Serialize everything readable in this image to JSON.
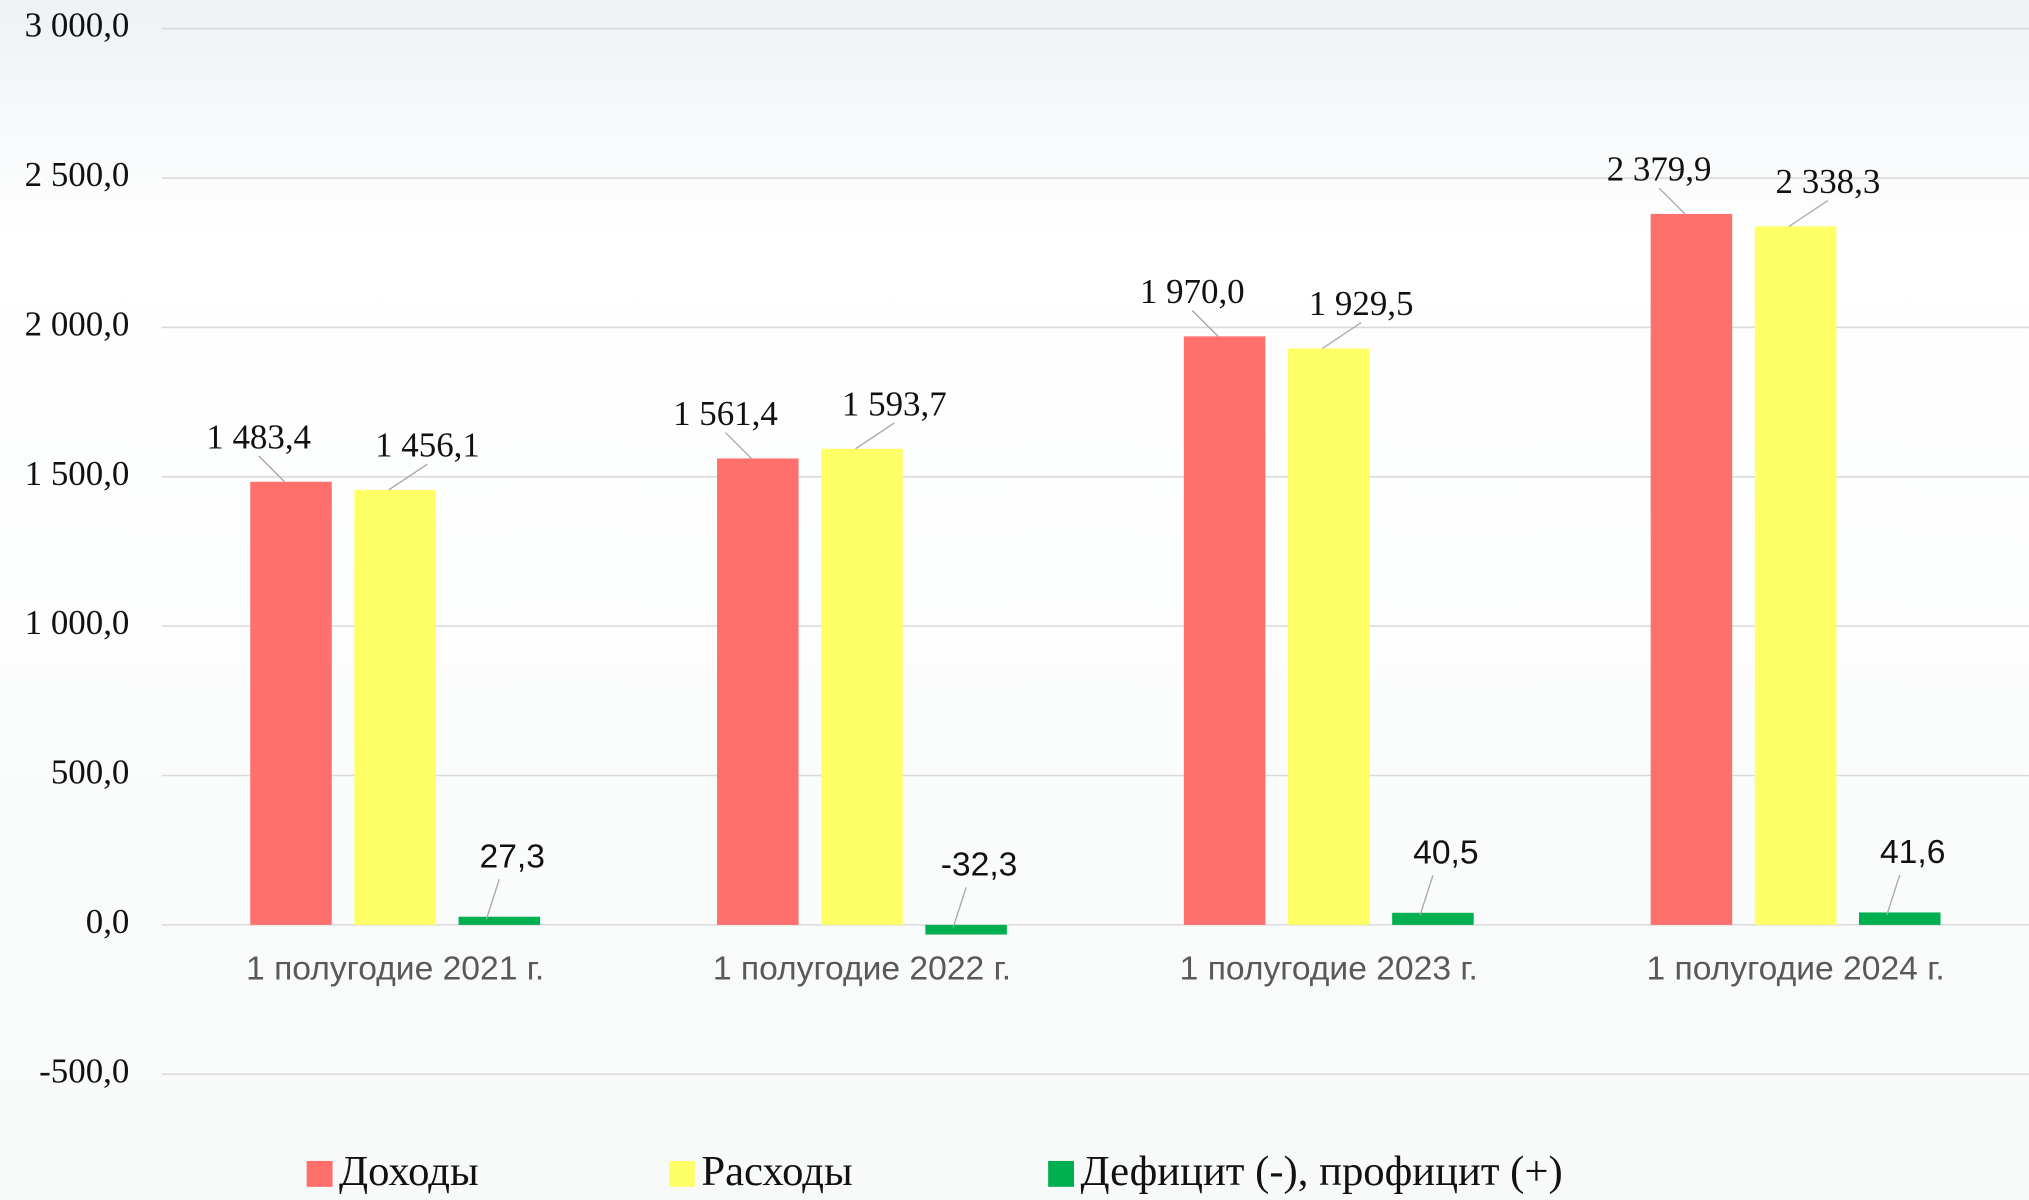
{
  "chart_data": {
    "type": "bar",
    "categories": [
      "1 полугодие 2021 г.",
      "1 полугодие 2022 г.",
      "1 полугодие 2023 г.",
      "1 полугодие 2024 г."
    ],
    "series": [
      {
        "name": "Доходы",
        "color": "#ff6f6b",
        "values": [
          1483.4,
          1561.4,
          1970.0,
          2379.9
        ],
        "value_labels": [
          "1 483,4",
          "1 561,4",
          "1 970,0",
          "2 379,9"
        ]
      },
      {
        "name": "Расходы",
        "color": "#ffff66",
        "values": [
          1456.1,
          1593.7,
          1929.5,
          2338.3
        ],
        "value_labels": [
          "1 456,1",
          "1 593,7",
          "1 929,5",
          "2 338,3"
        ]
      },
      {
        "name": "Дефицит (-), профицит (+)",
        "color": "#00b050",
        "values": [
          27.3,
          -32.3,
          40.5,
          41.6
        ],
        "value_labels": [
          "27,3",
          "-32,3",
          "40,5",
          "41,6"
        ]
      }
    ],
    "ylim": [
      -500,
      3000
    ],
    "yticks": [
      {
        "value": -500,
        "label": "-500,0"
      },
      {
        "value": 0,
        "label": "0,0"
      },
      {
        "value": 500,
        "label": "500,0"
      },
      {
        "value": 1000,
        "label": "1 000,0"
      },
      {
        "value": 1500,
        "label": "1 500,0"
      },
      {
        "value": 2000,
        "label": "2 000,0"
      },
      {
        "value": 2500,
        "label": "2 500,0"
      },
      {
        "value": 3000,
        "label": "3 000,0"
      }
    ],
    "grid": true,
    "legend": "bottom"
  }
}
